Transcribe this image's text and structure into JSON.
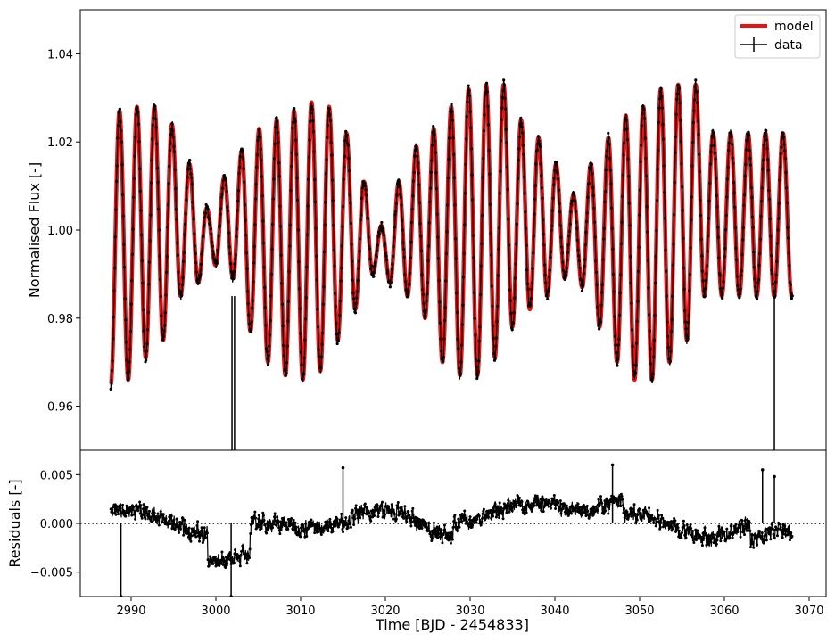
{
  "chart_data": [
    {
      "type": "line",
      "panel": "top",
      "ylabel": "Normalised Flux [-]",
      "ylim": [
        0.95,
        1.05
      ],
      "xlim": [
        2984,
        3072
      ],
      "yticks": [
        0.96,
        0.98,
        1.0,
        1.02,
        1.04
      ],
      "ytick_labels": [
        "0.96",
        "0.98",
        "1.00",
        "1.02",
        "1.04"
      ],
      "legend": {
        "placement": "top-right",
        "entries": [
          "model",
          "data"
        ]
      },
      "series": [
        {
          "name": "model",
          "color": "#ee1111"
        },
        {
          "name": "data",
          "color": "#000000"
        }
      ],
      "x_range_observed": [
        2987.6,
        3068.0
      ],
      "oscillation": {
        "period_days": 2.06,
        "crest_values": [
          1.027,
          1.028,
          1.028,
          1.024,
          1.015,
          1.005,
          1.012,
          1.018,
          1.023,
          1.025,
          1.027,
          1.029,
          1.028,
          1.022,
          1.011,
          1.001,
          1.011,
          1.019,
          1.023,
          1.028,
          1.032,
          1.033,
          1.033,
          1.025,
          1.021,
          1.015,
          1.008,
          1.015,
          1.021,
          1.026,
          1.028,
          1.032,
          1.033,
          1.033,
          1.022
        ],
        "trough_values": [
          0.965,
          0.966,
          0.971,
          0.975,
          0.985,
          0.988,
          0.992,
          0.989,
          0.977,
          0.97,
          0.967,
          0.966,
          0.968,
          0.975,
          0.982,
          0.99,
          0.988,
          0.985,
          0.98,
          0.97,
          0.967,
          0.967,
          0.971,
          0.978,
          0.982,
          0.985,
          0.989,
          0.987,
          0.978,
          0.97,
          0.966,
          0.966,
          0.97,
          0.975,
          0.985
        ]
      }
    },
    {
      "type": "scatter",
      "panel": "bottom",
      "xlabel": "Time [BJD - 2454833]",
      "ylabel": "Residuals [-]",
      "ylim": [
        -0.0075,
        0.0075
      ],
      "xlim": [
        2984,
        3072
      ],
      "yticks": [
        -0.005,
        0.0,
        0.005
      ],
      "ytick_labels": [
        "−0.005",
        "0.000",
        "0.005"
      ],
      "xticks": [
        2990,
        3000,
        3010,
        3020,
        3030,
        3040,
        3050,
        3060,
        3070
      ],
      "xtick_labels": [
        "2990",
        "3000",
        "3010",
        "3020",
        "3030",
        "3040",
        "3050",
        "3060",
        "3070"
      ],
      "reference_line": {
        "y": 0.0,
        "style": "dotted"
      },
      "outliers": [
        {
          "x": 2988.8,
          "y": -0.0075
        },
        {
          "x": 3001.8,
          "y": -0.0075
        },
        {
          "x": 3015.0,
          "y": 0.0057
        },
        {
          "x": 3046.8,
          "y": 0.006
        },
        {
          "x": 3064.5,
          "y": 0.0055
        },
        {
          "x": 3065.9,
          "y": 0.0048
        }
      ]
    }
  ]
}
